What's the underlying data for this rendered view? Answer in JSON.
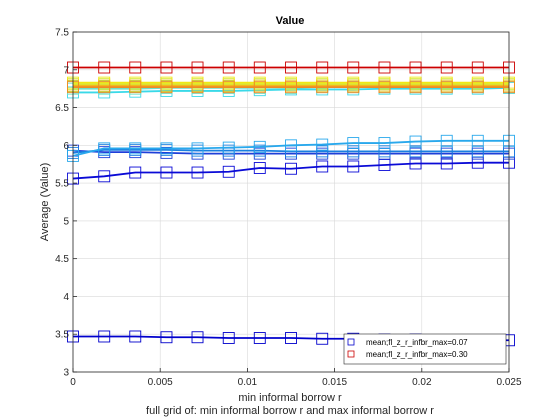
{
  "chart_data": {
    "type": "line",
    "title": "Value",
    "xlabel": "min informal borrow r",
    "ylabel": "Average (Value)",
    "subtitle": "full grid of: min informal borrow r and max informal borrow r",
    "xlim": [
      0,
      0.025
    ],
    "ylim": [
      3,
      7.5
    ],
    "xticks": [
      "0",
      "0.005",
      "0.01",
      "0.015",
      "0.02",
      "0.025"
    ],
    "yticks": [
      "3",
      "3.5",
      "4",
      "4.5",
      "5",
      "5.5",
      "6",
      "6.5",
      "7",
      "7.5"
    ],
    "grid": true,
    "legend_position": "bottom-right",
    "x": [
      0,
      0.00179,
      0.00357,
      0.00536,
      0.00714,
      0.00893,
      0.01071,
      0.0125,
      0.01429,
      0.01607,
      0.01786,
      0.01964,
      0.02143,
      0.02321,
      0.025
    ],
    "series": [
      {
        "name": "mean;fl_z_r_infbr_max=0.07",
        "color": "#0000cc",
        "values": [
          3.47,
          3.47,
          3.47,
          3.46,
          3.46,
          3.45,
          3.45,
          3.45,
          3.44,
          3.44,
          3.43,
          3.43,
          3.42,
          3.42,
          3.42
        ]
      },
      {
        "name": "",
        "color": "#0a0ad6",
        "values": [
          5.56,
          5.59,
          5.64,
          5.64,
          5.64,
          5.65,
          5.7,
          5.69,
          5.72,
          5.72,
          5.74,
          5.76,
          5.76,
          5.77,
          5.77
        ]
      },
      {
        "name": "",
        "color": "#1f3fd8",
        "values": [
          5.93,
          5.91,
          5.91,
          5.9,
          5.89,
          5.89,
          5.89,
          5.89,
          5.89,
          5.89,
          5.89,
          5.89,
          5.89,
          5.89,
          5.89
        ]
      },
      {
        "name": "",
        "color": "#1a7fe0",
        "values": [
          5.9,
          5.94,
          5.94,
          5.94,
          5.93,
          5.93,
          5.93,
          5.92,
          5.92,
          5.92,
          5.92,
          5.92,
          5.92,
          5.92,
          5.92
        ]
      },
      {
        "name": "",
        "color": "#29a8ec",
        "values": [
          5.86,
          5.96,
          5.96,
          5.96,
          5.96,
          5.97,
          5.98,
          6.0,
          6.01,
          6.03,
          6.03,
          6.05,
          6.06,
          6.06,
          6.06
        ]
      },
      {
        "name": "",
        "color": "#3ad9e8",
        "values": [
          6.7,
          6.7,
          6.71,
          6.72,
          6.72,
          6.72,
          6.73,
          6.74,
          6.74,
          6.74,
          6.75,
          6.75,
          6.75,
          6.75,
          6.76
        ]
      },
      {
        "name": "",
        "color": "#6ee0c8",
        "values": [
          6.75,
          6.75,
          6.75,
          6.76,
          6.76,
          6.76,
          6.76,
          6.76,
          6.77,
          6.77,
          6.77,
          6.77,
          6.77,
          6.77,
          6.77
        ]
      },
      {
        "name": "",
        "color": "#9be87a",
        "values": [
          6.78,
          6.78,
          6.78,
          6.78,
          6.78,
          6.78,
          6.79,
          6.79,
          6.79,
          6.79,
          6.79,
          6.79,
          6.79,
          6.79,
          6.79
        ]
      },
      {
        "name": "",
        "color": "#d4ec3c",
        "values": [
          6.81,
          6.81,
          6.81,
          6.81,
          6.81,
          6.81,
          6.81,
          6.81,
          6.81,
          6.81,
          6.81,
          6.81,
          6.81,
          6.81,
          6.81
        ]
      },
      {
        "name": "",
        "color": "#f0e818",
        "values": [
          6.83,
          6.83,
          6.83,
          6.83,
          6.83,
          6.83,
          6.83,
          6.83,
          6.83,
          6.83,
          6.83,
          6.83,
          6.83,
          6.83,
          6.83
        ]
      },
      {
        "name": "",
        "color": "#f3b81c",
        "values": [
          6.79,
          6.79,
          6.79,
          6.79,
          6.79,
          6.79,
          6.79,
          6.79,
          6.79,
          6.79,
          6.79,
          6.79,
          6.79,
          6.79,
          6.79
        ]
      },
      {
        "name": "",
        "color": "#ef8a24",
        "values": [
          6.77,
          6.77,
          6.77,
          6.77,
          6.77,
          6.77,
          6.77,
          6.77,
          6.77,
          6.77,
          6.77,
          6.77,
          6.77,
          6.77,
          6.77
        ]
      },
      {
        "name": "mean;fl_z_r_infbr_max=0.30",
        "color": "#cc0000",
        "values": [
          7.03,
          7.03,
          7.03,
          7.03,
          7.03,
          7.03,
          7.03,
          7.03,
          7.03,
          7.03,
          7.03,
          7.03,
          7.03,
          7.03,
          7.03
        ]
      }
    ]
  }
}
